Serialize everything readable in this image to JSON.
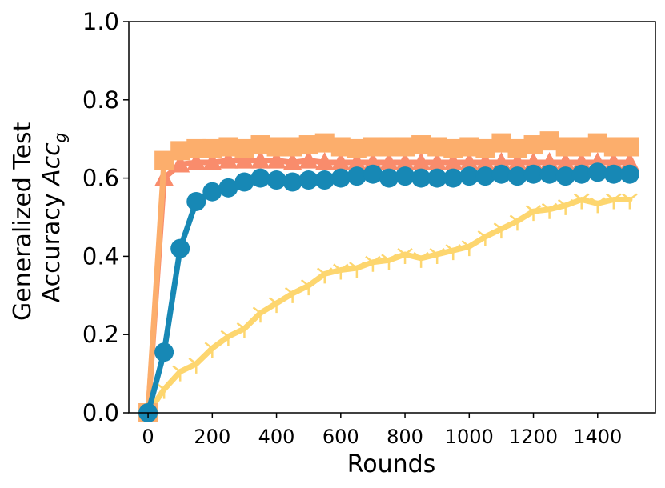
{
  "chart_data": {
    "type": "line",
    "xlabel": "Rounds",
    "ylabel_line1": "Generalized Test",
    "ylabel_line2_prefix": "Accuracy ",
    "ylabel_acc": "Acc",
    "ylabel_sub": "g",
    "xlim": [
      -60,
      1580
    ],
    "ylim": [
      0.0,
      1.0
    ],
    "xticks": [
      0,
      200,
      400,
      600,
      800,
      1000,
      1200,
      1400
    ],
    "yticks": [
      0.0,
      0.2,
      0.4,
      0.6,
      0.8,
      1.0
    ],
    "ytick_labels": [
      "0.0",
      "0.2",
      "0.4",
      "0.6",
      "0.8",
      "1.0"
    ],
    "grid": false,
    "x": [
      0,
      50,
      100,
      150,
      200,
      250,
      300,
      350,
      400,
      450,
      500,
      550,
      600,
      650,
      700,
      750,
      800,
      850,
      900,
      950,
      1000,
      1050,
      1100,
      1150,
      1200,
      1250,
      1300,
      1350,
      1400,
      1450,
      1500
    ],
    "series": [
      {
        "color": "#fdd66f",
        "marker": "tri-line",
        "values": [
          0.0,
          0.06,
          0.105,
          0.125,
          0.165,
          0.195,
          0.215,
          0.255,
          0.28,
          0.305,
          0.325,
          0.355,
          0.365,
          0.37,
          0.385,
          0.39,
          0.405,
          0.395,
          0.405,
          0.415,
          0.425,
          0.45,
          0.47,
          0.49,
          0.515,
          0.52,
          0.53,
          0.545,
          0.535,
          0.545,
          0.545
        ]
      },
      {
        "color": "#f98c6c",
        "marker": "triangle",
        "values": [
          0.0,
          0.6,
          0.635,
          0.64,
          0.64,
          0.645,
          0.645,
          0.645,
          0.645,
          0.64,
          0.645,
          0.64,
          0.64,
          0.64,
          0.64,
          0.64,
          0.64,
          0.64,
          0.64,
          0.64,
          0.64,
          0.64,
          0.64,
          0.64,
          0.64,
          0.64,
          0.64,
          0.64,
          0.64,
          0.64,
          0.64
        ]
      },
      {
        "color": "#fcae6c",
        "marker": "square",
        "values": [
          0.0,
          0.645,
          0.67,
          0.675,
          0.675,
          0.68,
          0.675,
          0.685,
          0.68,
          0.68,
          0.685,
          0.69,
          0.68,
          0.675,
          0.68,
          0.68,
          0.68,
          0.685,
          0.68,
          0.675,
          0.68,
          0.675,
          0.69,
          0.675,
          0.685,
          0.695,
          0.68,
          0.68,
          0.69,
          0.68,
          0.68
        ]
      },
      {
        "color": "#1788b5",
        "marker": "circle",
        "values": [
          0.0,
          0.155,
          0.42,
          0.54,
          0.565,
          0.575,
          0.59,
          0.6,
          0.595,
          0.59,
          0.595,
          0.595,
          0.6,
          0.605,
          0.61,
          0.6,
          0.605,
          0.6,
          0.6,
          0.6,
          0.605,
          0.605,
          0.61,
          0.605,
          0.61,
          0.61,
          0.605,
          0.61,
          0.615,
          0.61,
          0.61
        ]
      }
    ]
  }
}
